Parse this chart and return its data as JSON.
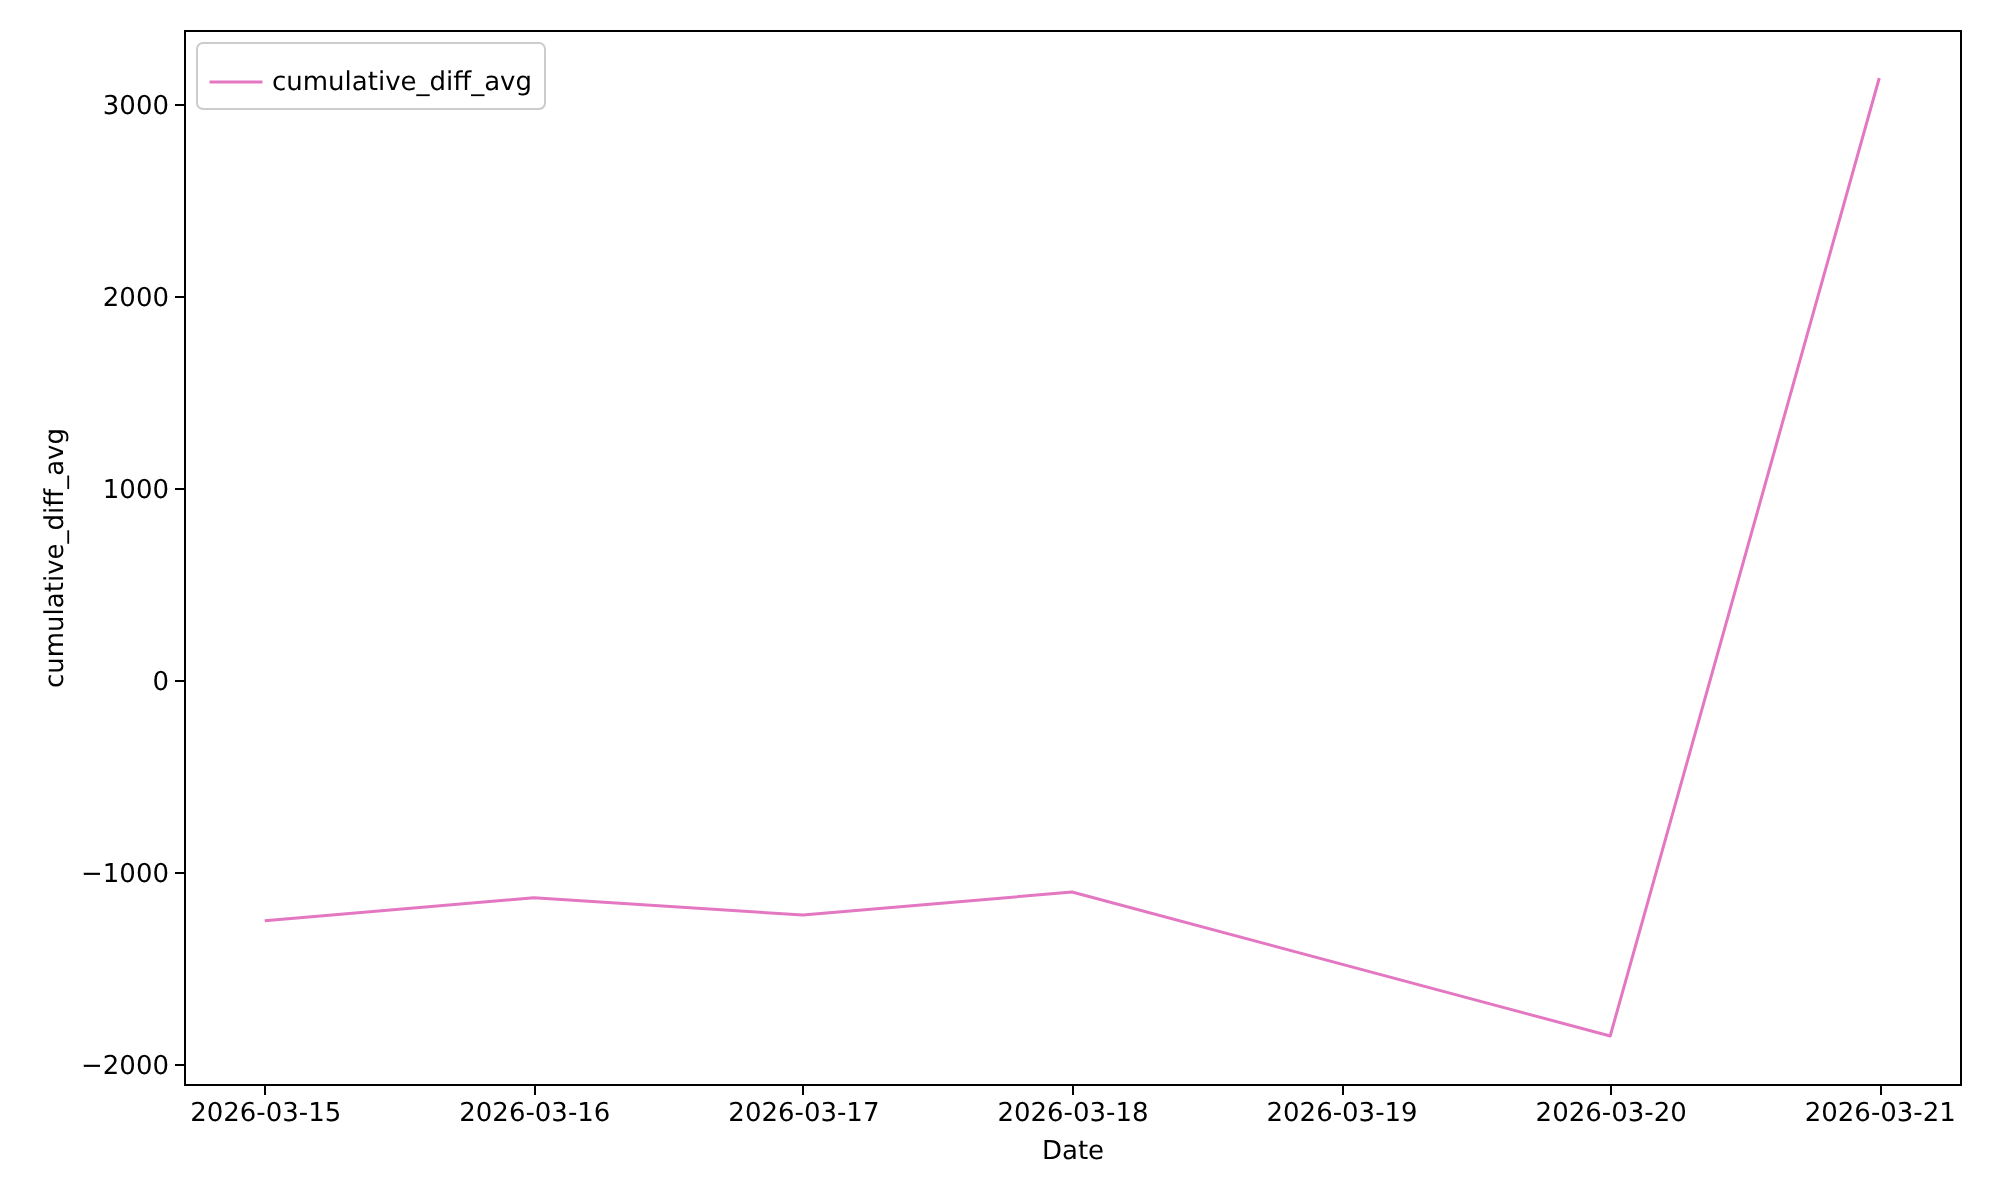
{
  "chart_data": {
    "type": "line",
    "xlabel": "Date",
    "ylabel": "cumulative_diff_avg",
    "x": [
      "2026-03-15",
      "2026-03-16",
      "2026-03-17",
      "2026-03-18",
      "2026-03-20",
      "2026-03-21"
    ],
    "series": [
      {
        "name": "cumulative_diff_avg",
        "color": "#e377c2",
        "values": [
          -1250,
          -1130,
          -1220,
          -1100,
          -1850,
          3140
        ]
      }
    ],
    "xlim": [
      "2026-03-14T16:48",
      "2026-03-21T07:12"
    ],
    "xticks": [
      "2026-03-15",
      "2026-03-16",
      "2026-03-17",
      "2026-03-18",
      "2026-03-19",
      "2026-03-20",
      "2026-03-21"
    ],
    "ylim": [
      -2100,
      3390
    ],
    "yticks": [
      -2000,
      -1000,
      0,
      1000,
      2000,
      3000
    ],
    "grid": false,
    "legend": "top left",
    "line_style": "solid",
    "marker": "none"
  }
}
